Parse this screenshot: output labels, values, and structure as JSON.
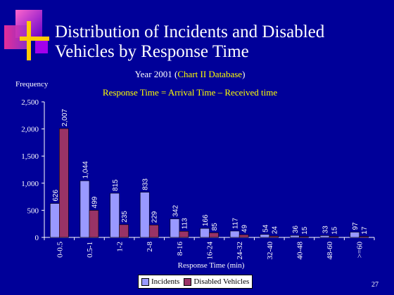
{
  "header": {
    "title": "Distribution of Incidents and Disabled Vehicles by Response Time",
    "subtitle_prefix": "Year 2001 (",
    "subtitle_highlight": "Chart II Database",
    "subtitle_suffix": ")",
    "formula": "Response Time = Arrival Time – Received time"
  },
  "page_number": "27",
  "colors": {
    "background": "#000099",
    "incidents": "#9999ff",
    "disabled_vehicles": "#993366",
    "title_highlight": "#ffff00"
  },
  "chart_data": {
    "type": "bar",
    "categories": [
      "0-0.5",
      "0.5-1",
      "1-2",
      "2-8",
      "8-16",
      "16-24",
      "24-32",
      "32-40",
      "40-48",
      "48-60",
      ">=60"
    ],
    "series": [
      {
        "name": "Incidents",
        "values": [
          626,
          1044,
          815,
          833,
          342,
          166,
          117,
          54,
          36,
          33,
          97
        ]
      },
      {
        "name": "Disabled Vehicles",
        "values": [
          2007,
          499,
          235,
          229,
          113,
          85,
          49,
          24,
          15,
          15,
          17
        ]
      }
    ],
    "data_labels": [
      [
        "626",
        "1,044",
        "815",
        "833",
        "342",
        "166",
        "117",
        "54",
        "36",
        "33",
        "97"
      ],
      [
        "2,007",
        "499",
        "235",
        "229",
        "113",
        "85",
        "49",
        "24",
        "15",
        "15",
        "17"
      ]
    ],
    "xlabel": "Response Time (min)",
    "ylabel": "Frequency",
    "ylim": [
      0,
      2500
    ],
    "yticks": [
      0,
      500,
      1000,
      1500,
      2000,
      2500
    ],
    "ytick_labels": [
      "0",
      "500",
      "1,000",
      "1,500",
      "2,000",
      "2,500"
    ],
    "grid": false,
    "legend_position": "bottom"
  }
}
